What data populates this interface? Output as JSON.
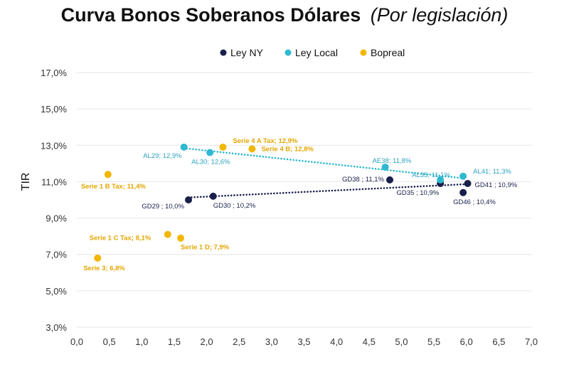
{
  "chart_data": {
    "type": "scatter",
    "title": "Curva Bonos Soberanos Dólares",
    "subtitle": "(Por legislación)",
    "xlabel": "",
    "ylabel": "TIR",
    "xlim": [
      0,
      7
    ],
    "ylim": [
      3,
      17
    ],
    "x_ticks": [
      "0,0",
      "0,5",
      "1,0",
      "1,5",
      "2,0",
      "2,5",
      "3,0",
      "3,5",
      "4,0",
      "4,5",
      "5,0",
      "5,5",
      "6,0",
      "6,5",
      "7,0"
    ],
    "y_ticks": [
      "3,0%",
      "5,0%",
      "7,0%",
      "9,0%",
      "11,0%",
      "13,0%",
      "15,0%",
      "17,0%"
    ],
    "legend_position": "top-center",
    "series": [
      {
        "name": "Ley NY",
        "color": "#1b1f4b",
        "trendline": true,
        "points": [
          {
            "x": 1.72,
            "y": 10.0,
            "label": "GD29 ; 10,0%"
          },
          {
            "x": 2.1,
            "y": 10.2,
            "label": "GD30 ; 10,2%"
          },
          {
            "x": 4.82,
            "y": 11.1,
            "label": "GD38 ; 11,1%"
          },
          {
            "x": 5.6,
            "y": 10.9,
            "label": "GD35 ; 10,9%"
          },
          {
            "x": 5.95,
            "y": 10.4,
            "label": "GD46 ; 10,4%"
          },
          {
            "x": 6.02,
            "y": 10.9,
            "label": "GD41 ; 10,9%"
          }
        ]
      },
      {
        "name": "Ley Local",
        "color": "#2fb9d1",
        "trendline": true,
        "points": [
          {
            "x": 1.65,
            "y": 12.9,
            "label": "AL29; 12,9%"
          },
          {
            "x": 2.05,
            "y": 12.6,
            "label": "AL30; 12,6%"
          },
          {
            "x": 4.75,
            "y": 11.8,
            "label": "AE38; 11,8%"
          },
          {
            "x": 5.6,
            "y": 11.1,
            "label": "AL35; 11,1%"
          },
          {
            "x": 5.95,
            "y": 11.3,
            "label": "AL41; 11,3%"
          }
        ]
      },
      {
        "name": "Bopreal",
        "color": "#f2b705",
        "trendline": false,
        "points": [
          {
            "x": 0.48,
            "y": 11.4,
            "label": "Serie 1 B Tax; 11,4%"
          },
          {
            "x": 2.25,
            "y": 12.9,
            "label": "Serie 4 A Tax; 12,9%"
          },
          {
            "x": 2.7,
            "y": 12.8,
            "label": "Serie 4 B; 12,8%"
          },
          {
            "x": 1.4,
            "y": 8.1,
            "label": "Serie 1 C Tax; 8,1%"
          },
          {
            "x": 1.6,
            "y": 7.9,
            "label": "Serie 1 D; 7,9%"
          },
          {
            "x": 0.32,
            "y": 6.8,
            "label": "Serie 3; 6,8%"
          }
        ]
      }
    ]
  }
}
